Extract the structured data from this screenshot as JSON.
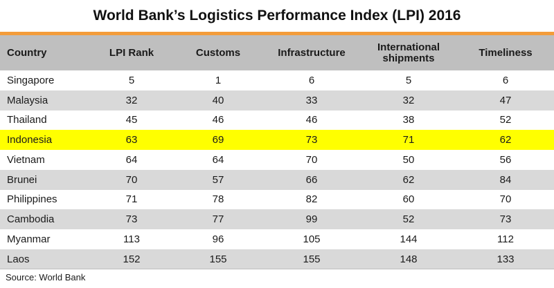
{
  "title": "World Bank’s Logistics Performance Index (LPI) 2016",
  "source": "Source: World Bank",
  "colors": {
    "accent_rule": "#f39c3a",
    "header_bg": "#bfbfbf",
    "alt_row_bg": "#d9d9d9",
    "highlight_row_bg": "#ffff00"
  },
  "chart_data": {
    "type": "table",
    "title": "World Bank’s Logistics Performance Index (LPI) 2016",
    "columns": [
      "Country",
      "LPI Rank",
      "Customs",
      "Infrastructure",
      "International shipments",
      "Timeliness"
    ],
    "highlighted_row": "Indonesia",
    "rows": [
      [
        "Singapore",
        "5",
        "1",
        "6",
        "5",
        "6"
      ],
      [
        "Malaysia",
        "32",
        "40",
        "33",
        "32",
        "47"
      ],
      [
        "Thailand",
        "45",
        "46",
        "46",
        "38",
        "52"
      ],
      [
        "Indonesia",
        "63",
        "69",
        "73",
        "71",
        "62"
      ],
      [
        "Vietnam",
        "64",
        "64",
        "70",
        "50",
        "56"
      ],
      [
        "Brunei",
        "70",
        "57",
        "66",
        "62",
        "84"
      ],
      [
        "Philippines",
        "71",
        "78",
        "82",
        "60",
        "70"
      ],
      [
        "Cambodia",
        "73",
        "77",
        "99",
        "52",
        "73"
      ],
      [
        "Myanmar",
        "113",
        "96",
        "105",
        "144",
        "112"
      ],
      [
        "Laos",
        "152",
        "155",
        "155",
        "148",
        "133"
      ]
    ]
  }
}
